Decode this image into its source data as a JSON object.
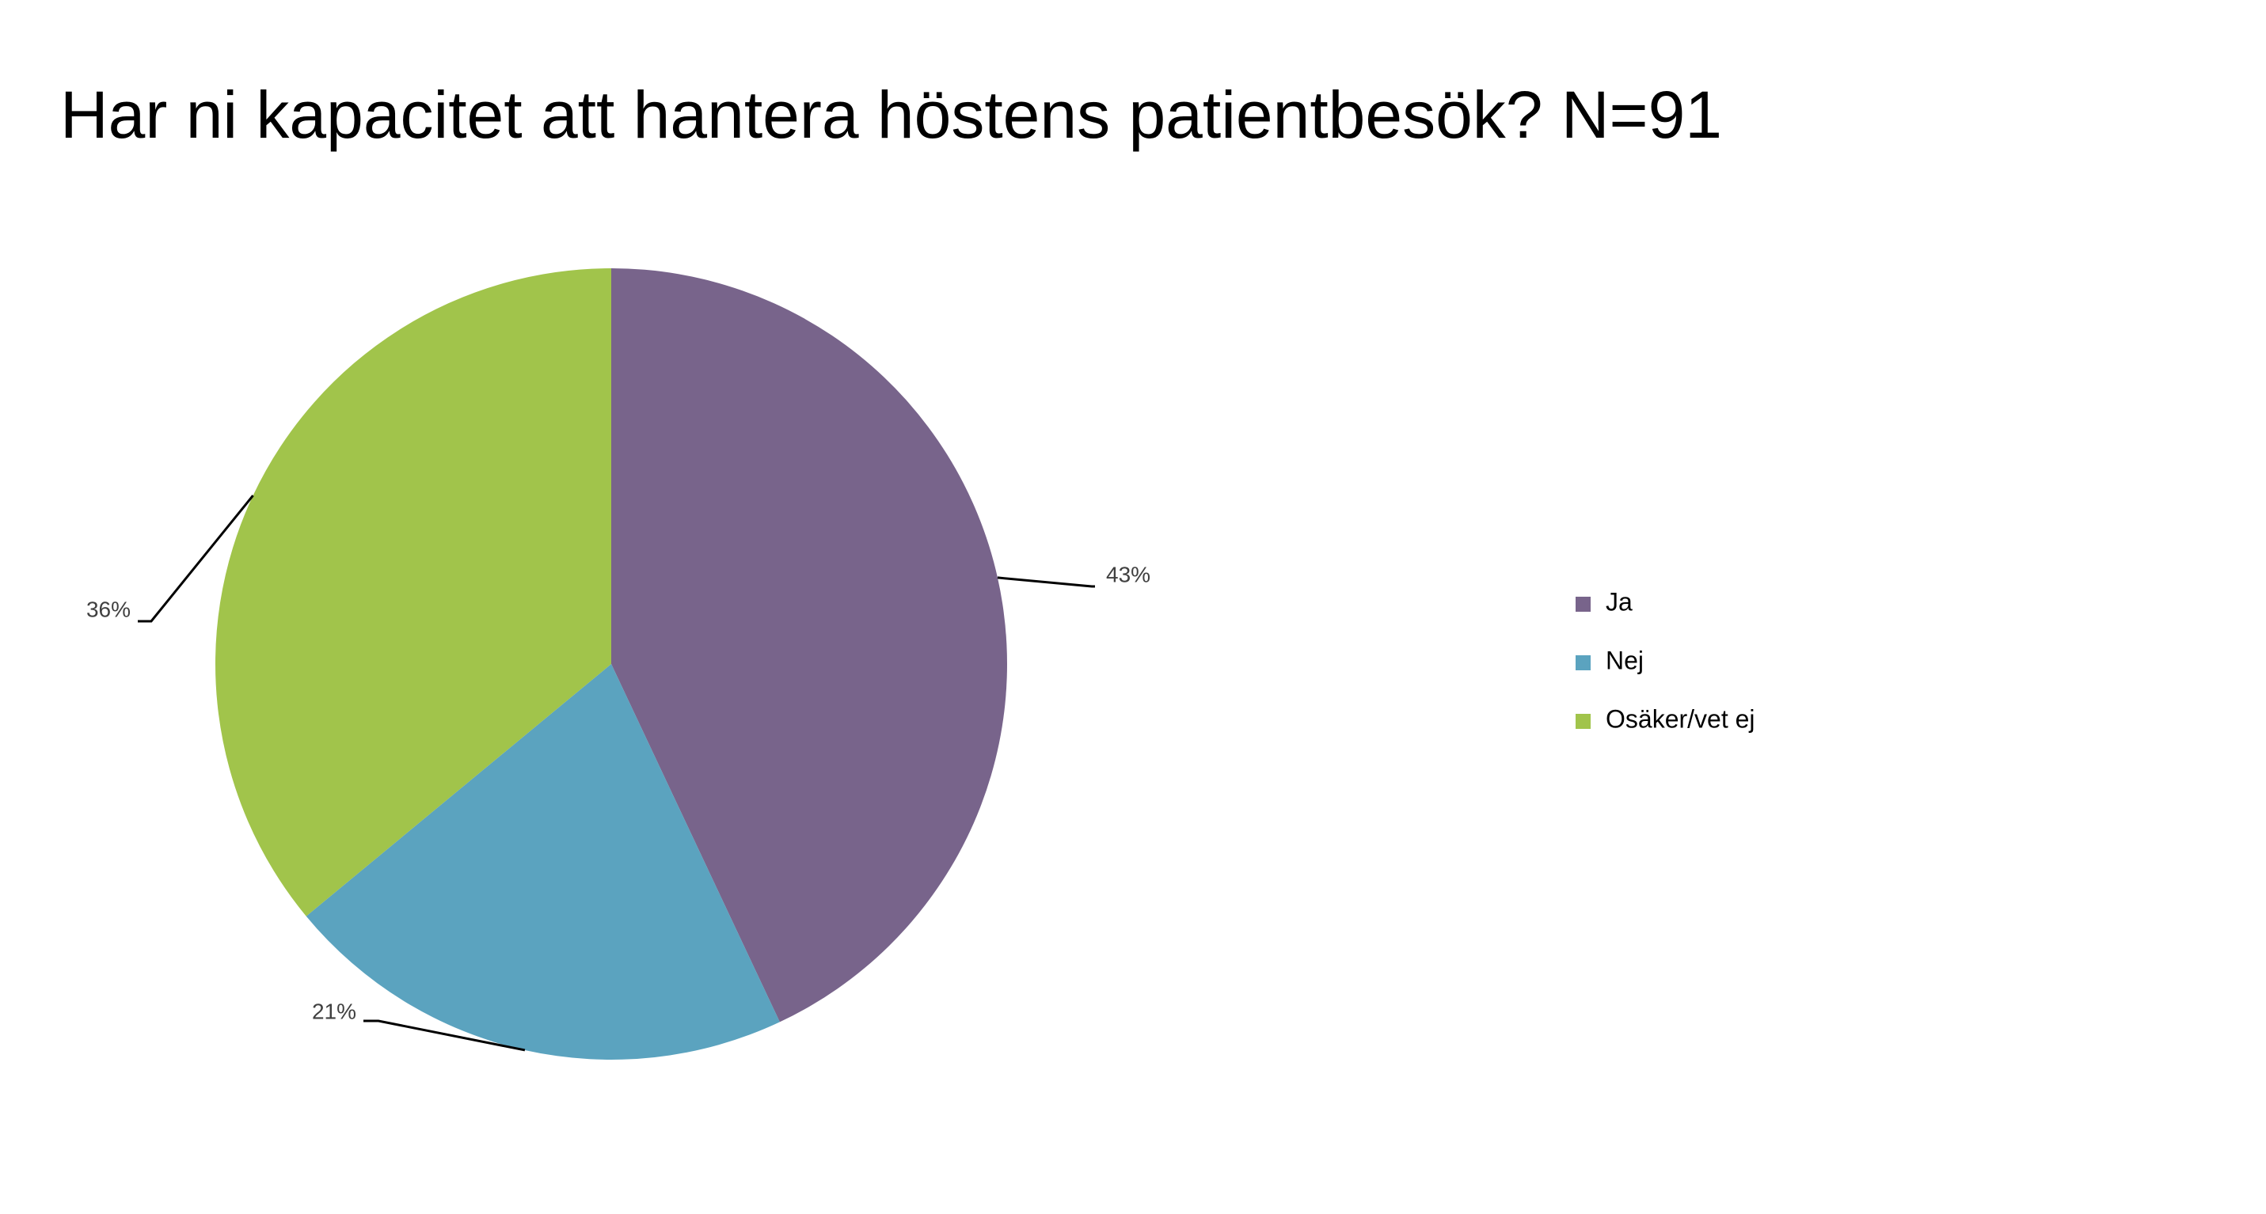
{
  "chart_data": {
    "type": "pie",
    "title": "Har ni kapacitet att hantera höstens patientbesök? N=91",
    "categories": [
      "Ja",
      "Nej",
      "Osäker/vet ej"
    ],
    "values": [
      43,
      21,
      36
    ],
    "value_labels": [
      "43%",
      "21%",
      "36%"
    ],
    "colors": [
      "#78648b",
      "#5ba3bf",
      "#a1c44b"
    ],
    "legend": "right"
  }
}
